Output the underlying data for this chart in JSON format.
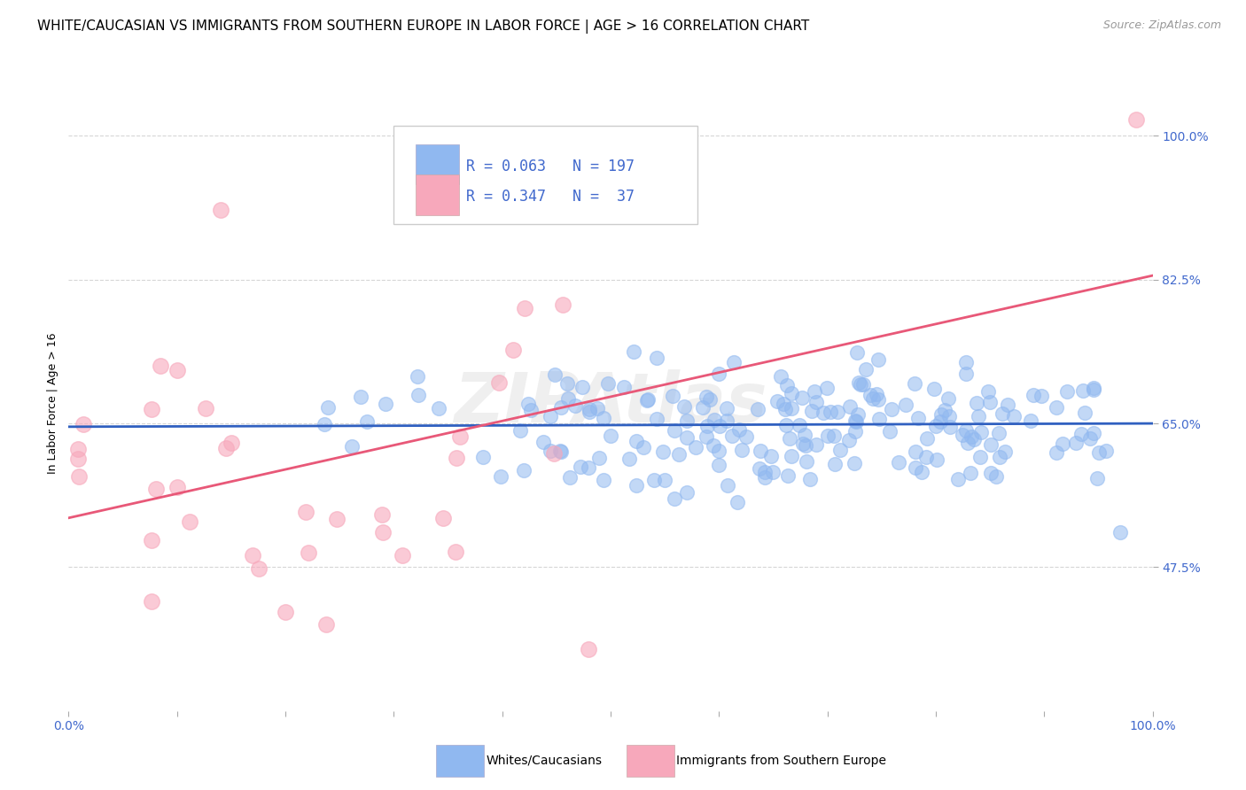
{
  "title": "WHITE/CAUCASIAN VS IMMIGRANTS FROM SOUTHERN EUROPE IN LABOR FORCE | AGE > 16 CORRELATION CHART",
  "source": "Source: ZipAtlas.com",
  "ylabel": "In Labor Force | Age > 16",
  "xlim": [
    0.0,
    1.0
  ],
  "ylim": [
    0.3,
    1.05
  ],
  "yticks": [
    0.475,
    0.65,
    0.825,
    1.0
  ],
  "ytick_labels": [
    "47.5%",
    "65.0%",
    "82.5%",
    "100.0%"
  ],
  "blue_color": "#90B8F0",
  "blue_edge_color": "#90B8F0",
  "pink_color": "#F7A8BB",
  "pink_edge_color": "#F7A8BB",
  "blue_line_color": "#3060C0",
  "pink_line_color": "#E85878",
  "label_color": "#4169CD",
  "background_color": "#FFFFFF",
  "grid_color": "#CCCCCC",
  "legend_label1": "Whites/Caucasians",
  "legend_label2": "Immigrants from Southern Europe",
  "watermark": "ZIPAtlas",
  "blue_R": 0.063,
  "blue_N": 197,
  "pink_R": 0.347,
  "pink_N": 37,
  "blue_intercept": 0.646,
  "blue_slope": 0.004,
  "pink_intercept": 0.535,
  "pink_slope": 0.295,
  "title_fontsize": 11,
  "axis_label_fontsize": 9,
  "tick_fontsize": 10,
  "legend_fontsize": 12
}
